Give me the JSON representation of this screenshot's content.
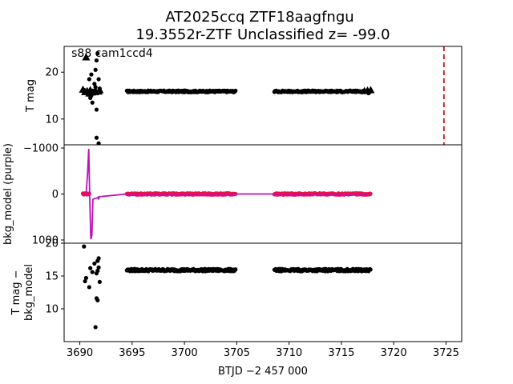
{
  "title_line1": "AT2025ccq  ZTF18aagfngu",
  "title_line2": "19.3552r-ZTF Unclassified z= -99.0",
  "sector_label": "s88 cam1ccd4",
  "xlabel": "BTJD −2 457 000",
  "colors": {
    "points": "#000000",
    "bkg_points": "#ee1144",
    "bkg_model": "#bb11bb",
    "marker_line": "#dd0000"
  },
  "chart_data": [
    {
      "type": "scatter",
      "ylabel": "T mag",
      "ylim": [
        25.5,
        4.5
      ],
      "yticks": [
        10,
        20
      ],
      "xlim": [
        3688.5,
        3726.5
      ],
      "vline_x": 3724.8,
      "series": [
        {
          "segments": [
            [
              3694.5,
              3704.9,
              15.9
            ],
            [
              3708.6,
              3717.4,
              15.9
            ]
          ]
        },
        {
          "points": [
            [
              3690.4,
              16.2
            ],
            [
              3690.6,
              15.8
            ],
            [
              3690.8,
              15.2
            ],
            [
              3691.0,
              14.5
            ],
            [
              3691.1,
              15.0
            ],
            [
              3691.2,
              13.5
            ],
            [
              3691.3,
              16.0
            ],
            [
              3691.4,
              17.5
            ],
            [
              3691.5,
              16.8
            ],
            [
              3691.6,
              12.0
            ],
            [
              3691.7,
              15.5
            ],
            [
              3691.8,
              18.5
            ],
            [
              3691.9,
              16.5
            ],
            [
              3690.9,
              18.5
            ],
            [
              3691.1,
              19.5
            ],
            [
              3691.5,
              20.5
            ],
            [
              3691.6,
              22.5
            ],
            [
              3691.7,
              24.0
            ],
            [
              3691.8,
              4.8
            ],
            [
              3691.6,
              6.0
            ],
            [
              3717.6,
              15.5
            ]
          ]
        },
        {
          "triangles": [
            [
              3690.3,
              16.3
            ],
            [
              3690.5,
              15.8
            ],
            [
              3690.7,
              16.0
            ],
            [
              3690.9,
              15.5
            ],
            [
              3691.0,
              16.2
            ],
            [
              3691.2,
              15.7
            ],
            [
              3691.5,
              16.0
            ],
            [
              3691.8,
              15.9
            ],
            [
              3691.9,
              16.2
            ],
            [
              3690.6,
              23.2
            ],
            [
              3717.2,
              16.0
            ],
            [
              3717.5,
              16.1
            ],
            [
              3717.8,
              16.2
            ]
          ]
        }
      ]
    },
    {
      "type": "scatter",
      "ylabel": "bkg_model (purple)",
      "ylim": [
        -1070,
        1070
      ],
      "yticks": [
        1000,
        0,
        -1000
      ],
      "xlim": [
        3688.5,
        3726.5
      ],
      "series": [
        {
          "segments": [
            [
              3690.3,
              3690.9,
              0
            ],
            [
              3694.5,
              3704.9,
              0
            ],
            [
              3708.6,
              3717.8,
              0
            ]
          ]
        },
        {
          "line": [
            [
              3690.3,
              0
            ],
            [
              3690.6,
              0
            ],
            [
              3690.75,
              -480
            ],
            [
              3690.85,
              -980
            ],
            [
              3690.95,
              100
            ],
            [
              3691.05,
              980
            ],
            [
              3691.15,
              900
            ],
            [
              3691.25,
              120
            ],
            [
              3691.4,
              100
            ],
            [
              3691.6,
              90
            ],
            [
              3691.75,
              70
            ],
            [
              3691.8,
              120
            ],
            [
              3691.85,
              60
            ],
            [
              3694.5,
              0
            ],
            [
              3704.9,
              0
            ],
            [
              3708.6,
              0
            ],
            [
              3717.8,
              0
            ]
          ]
        }
      ]
    },
    {
      "type": "scatter",
      "ylabel": "T mag −\nbkg_model",
      "ylim": [
        20,
        5
      ],
      "yticks": [
        10,
        15,
        20
      ],
      "xlim": [
        3688.5,
        3726.5
      ],
      "xticks": [
        3690,
        3695,
        3700,
        3705,
        3710,
        3715,
        3720,
        3725
      ],
      "series": [
        {
          "segments": [
            [
              3694.5,
              3704.9,
              15.9
            ],
            [
              3708.6,
              3717.8,
              15.9
            ]
          ]
        },
        {
          "points": [
            [
              3690.6,
              14.7
            ],
            [
              3690.9,
              13.3
            ],
            [
              3691.0,
              16.2
            ],
            [
              3691.2,
              15.6
            ],
            [
              3691.4,
              16.9
            ],
            [
              3691.6,
              11.6
            ],
            [
              3691.6,
              15.4
            ],
            [
              3691.7,
              17.3
            ],
            [
              3691.7,
              15.8
            ],
            [
              3691.8,
              16.3
            ],
            [
              3691.8,
              17.7
            ],
            [
              3691.9,
              14.1
            ],
            [
              3690.4,
              19.5
            ],
            [
              3690.5,
              14.2
            ],
            [
              3691.5,
              7.2
            ],
            [
              3691.7,
              11.3
            ],
            [
              3717.5,
              15.9
            ]
          ]
        }
      ]
    }
  ]
}
